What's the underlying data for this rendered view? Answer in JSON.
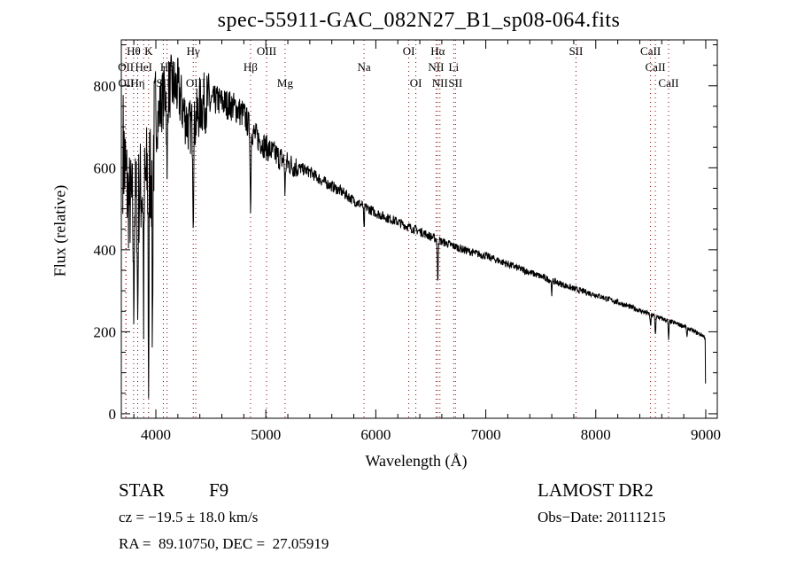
{
  "chart_data": {
    "type": "line",
    "title": "spec-55911-GAC_082N27_B1_sp08-064.fits",
    "xlabel": "Wavelength (Å)",
    "ylabel": "Flux (relative)",
    "xlim": [
      3686,
      9105
    ],
    "ylim": [
      -11,
      912
    ],
    "xticks": [
      4000,
      5000,
      6000,
      7000,
      8000,
      9000
    ],
    "yticks": [
      0,
      200,
      400,
      600,
      800
    ],
    "grid": false,
    "series": [
      {
        "name": "spectrum",
        "x": [
          3700,
          3750,
          3800,
          3850,
          3900,
          3950,
          4000,
          4050,
          4100,
          4150,
          4200,
          4250,
          4300,
          4350,
          4400,
          4450,
          4500,
          4550,
          4600,
          4650,
          4700,
          4750,
          4800,
          4850,
          4900,
          4950,
          5000,
          5100,
          5200,
          5300,
          5400,
          5500,
          5600,
          5700,
          5800,
          5900,
          6000,
          6100,
          6200,
          6300,
          6400,
          6500,
          6600,
          6700,
          6800,
          6900,
          7000,
          7200,
          7400,
          7600,
          7800,
          8000,
          8200,
          8400,
          8600,
          8800,
          8900,
          8980,
          8995,
          9000
        ],
        "y": [
          650,
          520,
          500,
          540,
          560,
          600,
          700,
          760,
          790,
          800,
          790,
          740,
          700,
          700,
          750,
          760,
          760,
          765,
          760,
          755,
          750,
          740,
          730,
          700,
          680,
          665,
          650,
          630,
          610,
          600,
          590,
          570,
          555,
          540,
          520,
          505,
          490,
          478,
          468,
          455,
          445,
          432,
          420,
          410,
          400,
          392,
          385,
          365,
          345,
          325,
          305,
          290,
          272,
          252,
          232,
          214,
          200,
          190,
          185,
          0
        ]
      }
    ],
    "absorption_dips": [
      {
        "x": 3934,
        "depth": 500
      },
      {
        "x": 3969,
        "depth": 450
      },
      {
        "x": 3889,
        "depth": 300
      },
      {
        "x": 3835,
        "depth": 300
      },
      {
        "x": 3798,
        "depth": 250
      },
      {
        "x": 4102,
        "depth": 250
      },
      {
        "x": 4340,
        "depth": 200
      },
      {
        "x": 4861,
        "depth": 210
      },
      {
        "x": 5175,
        "depth": 80
      },
      {
        "x": 5893,
        "depth": 60
      },
      {
        "x": 6563,
        "depth": 110
      },
      {
        "x": 7600,
        "depth": 30
      },
      {
        "x": 8498,
        "depth": 30
      },
      {
        "x": 8542,
        "depth": 45
      },
      {
        "x": 8662,
        "depth": 45
      },
      {
        "x": 8830,
        "depth": 25
      }
    ],
    "line_markers": [
      {
        "label": "Hθ",
        "x": 3798,
        "row": 1
      },
      {
        "label": "K",
        "x": 3934,
        "row": 1
      },
      {
        "label": "Hγ",
        "x": 4340,
        "row": 1
      },
      {
        "label": "OIII",
        "x": 5007,
        "row": 1
      },
      {
        "label": "OI",
        "x": 6300,
        "row": 1
      },
      {
        "label": "Hα",
        "x": 6563,
        "row": 1
      },
      {
        "label": "SII",
        "x": 7820,
        "row": 1
      },
      {
        "label": "CaII",
        "x": 8498,
        "row": 1
      },
      {
        "label": "OII",
        "x": 3727,
        "row": 2
      },
      {
        "label": "HeI",
        "x": 3889,
        "row": 2
      },
      {
        "label": "Hδ",
        "x": 4102,
        "row": 2
      },
      {
        "label": "Hβ",
        "x": 4861,
        "row": 2
      },
      {
        "label": "Na",
        "x": 5893,
        "row": 2
      },
      {
        "label": "NII",
        "x": 6548,
        "row": 2
      },
      {
        "label": "Li",
        "x": 6708,
        "row": 2
      },
      {
        "label": "CaII",
        "x": 8542,
        "row": 2
      },
      {
        "label": "OII",
        "x": 3729,
        "row": 3
      },
      {
        "label": "Hη",
        "x": 3835,
        "row": 3
      },
      {
        "label": "SII",
        "x": 4068,
        "row": 3
      },
      {
        "label": "OIII",
        "x": 4363,
        "row": 3
      },
      {
        "label": "Mg",
        "x": 5175,
        "row": 3
      },
      {
        "label": "OI",
        "x": 6364,
        "row": 3
      },
      {
        "label": "NII",
        "x": 6583,
        "row": 3
      },
      {
        "label": "SII",
        "x": 6724,
        "row": 3
      },
      {
        "label": "CaII",
        "x": 8662,
        "row": 3
      }
    ],
    "marker_color": "#8b0000"
  },
  "info": {
    "object_class": "STAR",
    "subclass": "F9",
    "survey": "LAMOST DR2",
    "redshift": "cz = −19.5 ± 18.0 km/s",
    "obs_date": "Obs−Date: 20111215",
    "coords": "RA =  89.10750, DEC =  27.05919"
  }
}
